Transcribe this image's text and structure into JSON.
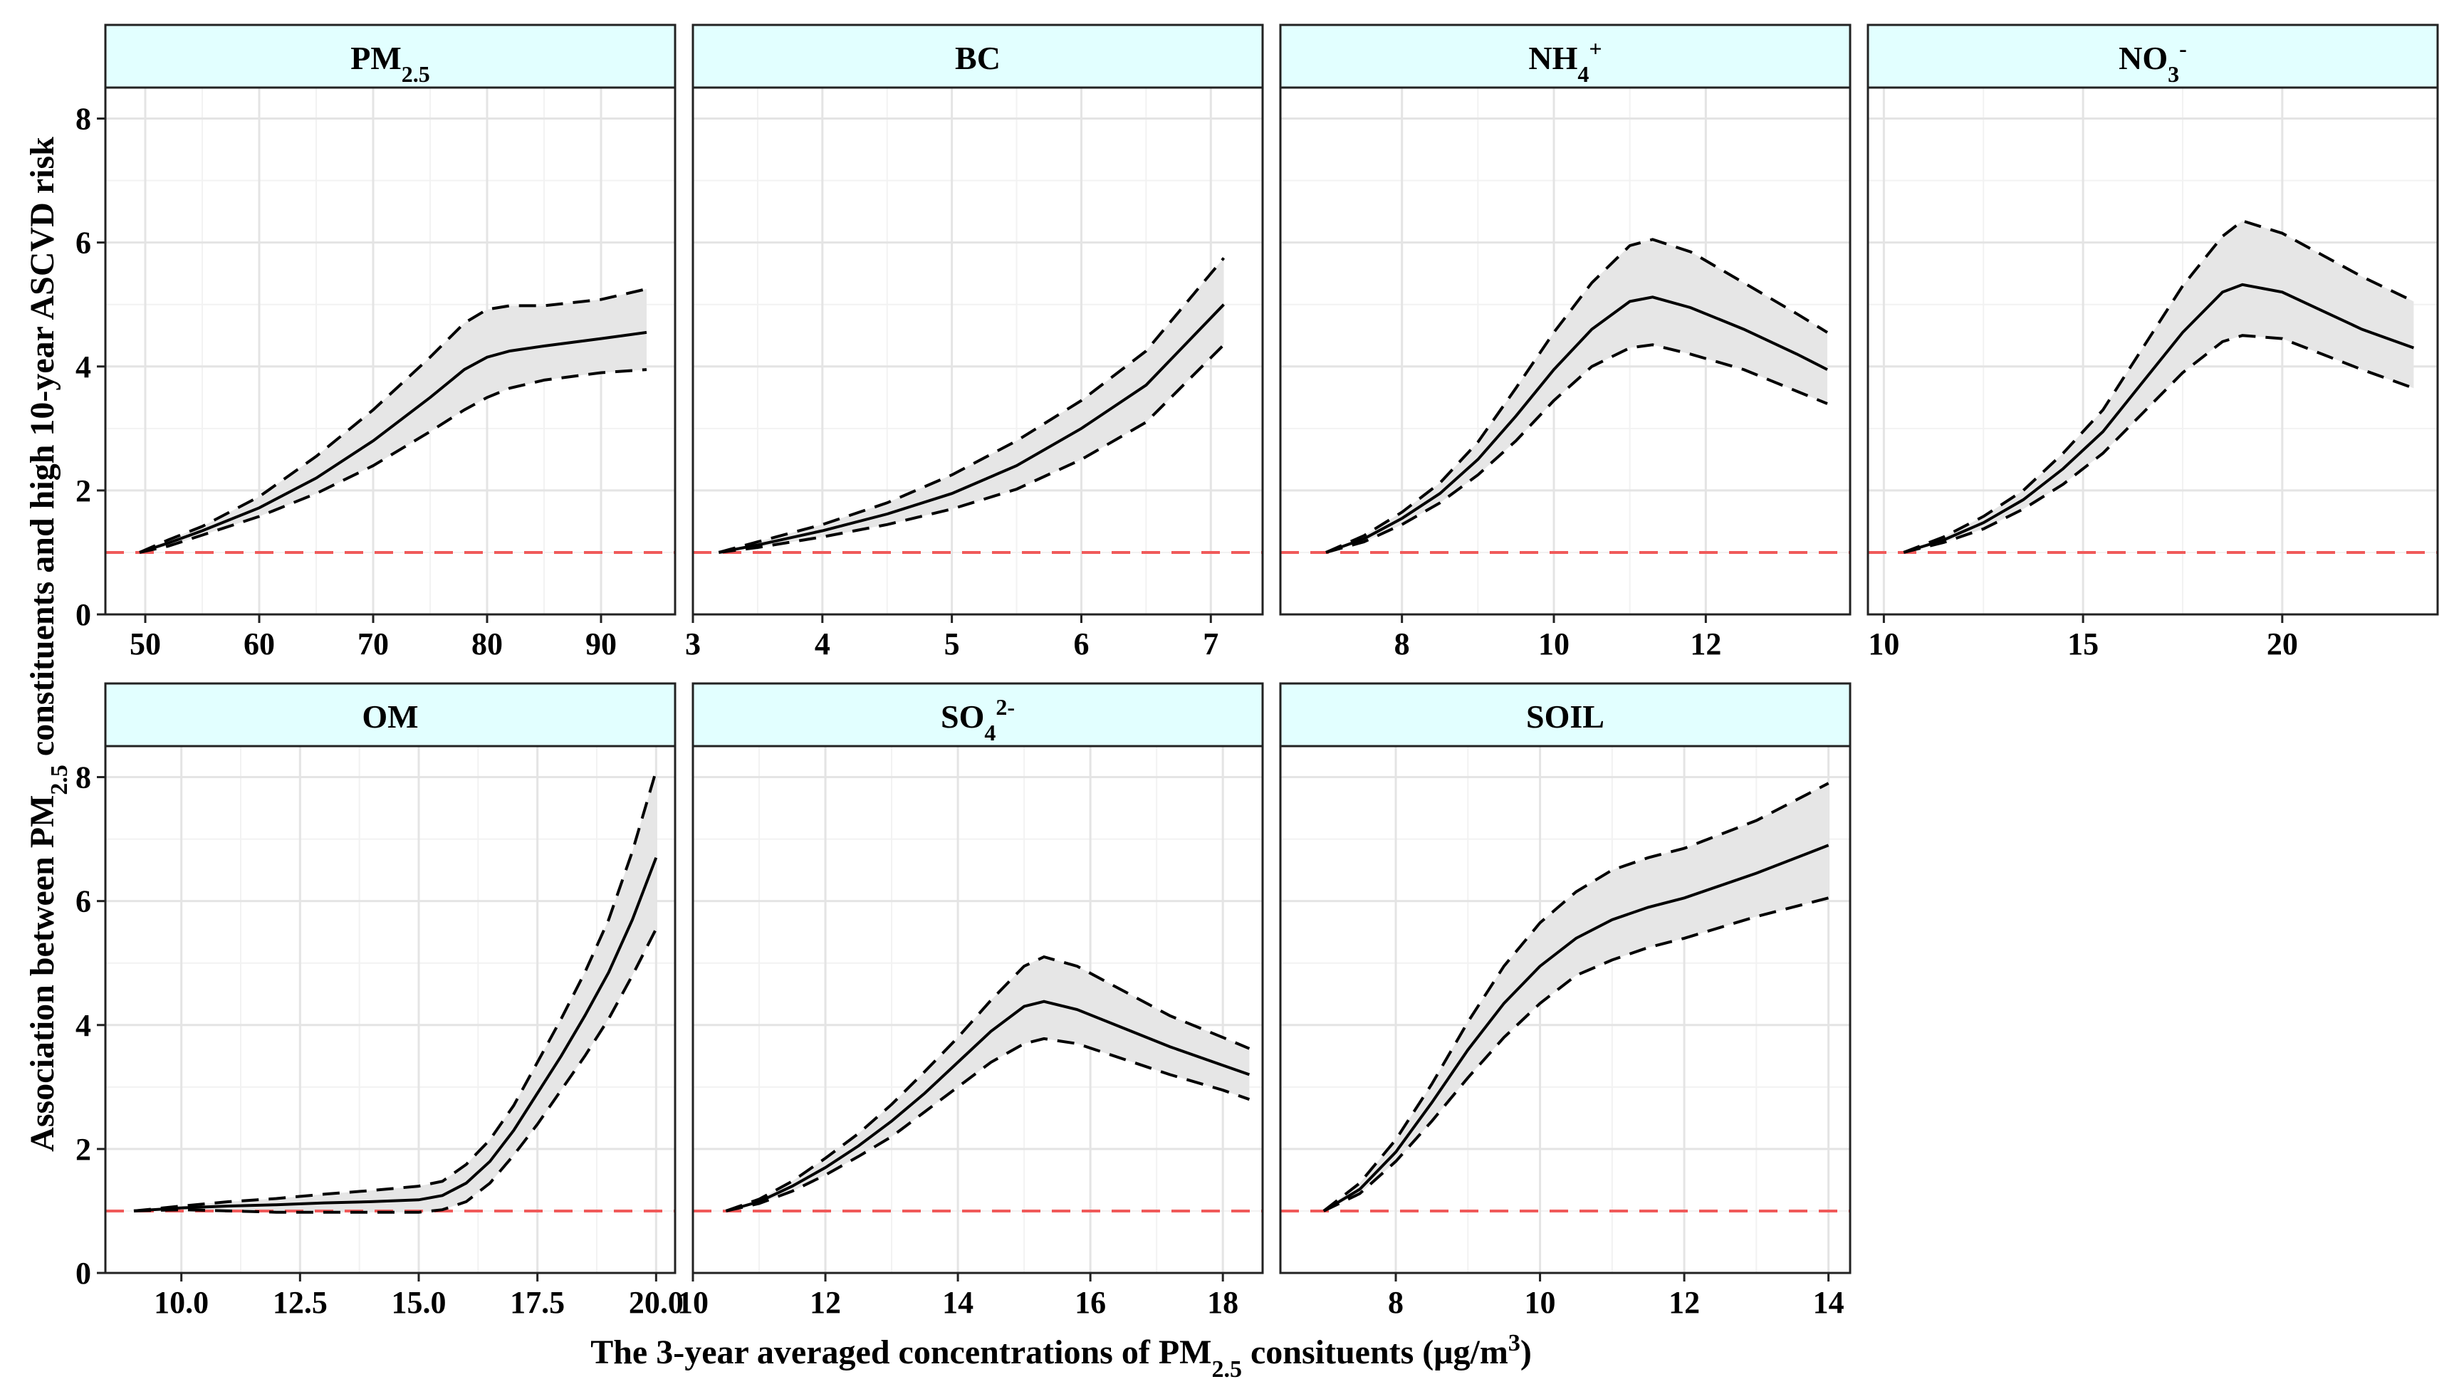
{
  "chart_data": {
    "type": "line",
    "ylabel": "Association between PM2.5 constituents and high 10-year ASCVD risk",
    "ylabel_parts": {
      "pre": "Association between PM",
      "sub": "2.5",
      "post": " constituents and high 10-year ASCVD risk"
    },
    "xlabel": "The 3-year averaged concentrations of PM2.5 consituents (μg/m3)",
    "xlabel_parts": {
      "pre": "The 3-year averaged concentrations of PM",
      "sub": "2.5",
      "mid": " consituents (μg/m",
      "sup": "3",
      "post": ")"
    },
    "ylim": [
      0,
      8.5
    ],
    "yticks": [
      0,
      2,
      4,
      6,
      8
    ],
    "reference_line": {
      "y": 1,
      "color": "#f05a5a",
      "style": "dashed"
    },
    "strip_color": "#e2ffff",
    "ribbon_color": "#e6e6e6",
    "panels": [
      {
        "id": "pm25",
        "title": "PM2.5",
        "title_parts": {
          "base": "PM",
          "sub": "2.5",
          "sup": ""
        },
        "xlim": [
          46.5,
          96.5
        ],
        "xticks": [
          50,
          60,
          70,
          80,
          90
        ],
        "xtick_labels": [
          "50",
          "60",
          "70",
          "80",
          "90"
        ],
        "x": [
          49.5,
          52,
          55,
          60,
          65,
          70,
          75,
          78,
          80,
          82,
          85,
          90,
          94
        ],
        "estimate": [
          1.0,
          1.15,
          1.35,
          1.72,
          2.2,
          2.8,
          3.5,
          3.95,
          4.15,
          4.25,
          4.33,
          4.45,
          4.55
        ],
        "lower": [
          1.0,
          1.1,
          1.28,
          1.58,
          1.95,
          2.4,
          2.95,
          3.3,
          3.5,
          3.65,
          3.78,
          3.9,
          3.95
        ],
        "upper": [
          1.0,
          1.2,
          1.42,
          1.9,
          2.55,
          3.3,
          4.15,
          4.7,
          4.92,
          4.98,
          4.98,
          5.08,
          5.25
        ]
      },
      {
        "id": "bc",
        "title": "BC",
        "title_parts": {
          "base": "BC",
          "sub": "",
          "sup": ""
        },
        "xlim": [
          3.0,
          7.4
        ],
        "xticks": [
          3,
          4,
          5,
          6,
          7
        ],
        "xtick_labels": [
          "3",
          "4",
          "5",
          "6",
          "7"
        ],
        "x": [
          3.2,
          3.5,
          4.0,
          4.5,
          5.0,
          5.5,
          6.0,
          6.5,
          7.1
        ],
        "estimate": [
          1.0,
          1.12,
          1.35,
          1.62,
          1.95,
          2.4,
          3.0,
          3.7,
          5.0
        ],
        "lower": [
          1.0,
          1.08,
          1.25,
          1.45,
          1.7,
          2.02,
          2.5,
          3.1,
          4.35
        ],
        "upper": [
          1.0,
          1.17,
          1.45,
          1.8,
          2.25,
          2.8,
          3.45,
          4.25,
          5.75
        ]
      },
      {
        "id": "nh4",
        "title": "NH4+",
        "title_parts": {
          "base": "NH",
          "sub": "4",
          "sup": "+"
        },
        "xlim": [
          6.4,
          13.9
        ],
        "xticks": [
          8,
          10,
          12
        ],
        "xtick_labels": [
          "8",
          "10",
          "12"
        ],
        "x": [
          7.0,
          7.5,
          8.0,
          8.5,
          9.0,
          9.5,
          10.0,
          10.5,
          11.0,
          11.3,
          11.8,
          12.5,
          13.2,
          13.6
        ],
        "estimate": [
          1.0,
          1.22,
          1.55,
          1.95,
          2.5,
          3.2,
          3.95,
          4.6,
          5.05,
          5.12,
          4.95,
          4.6,
          4.2,
          3.95
        ],
        "lower": [
          1.0,
          1.17,
          1.45,
          1.8,
          2.25,
          2.8,
          3.45,
          4.0,
          4.3,
          4.35,
          4.2,
          3.95,
          3.6,
          3.4
        ],
        "upper": [
          1.0,
          1.27,
          1.65,
          2.12,
          2.78,
          3.65,
          4.55,
          5.35,
          5.95,
          6.05,
          5.85,
          5.35,
          4.85,
          4.55
        ]
      },
      {
        "id": "no3",
        "title": "NO3-",
        "title_parts": {
          "base": "NO",
          "sub": "3",
          "sup": "-"
        },
        "xlim": [
          9.6,
          23.9
        ],
        "xticks": [
          10,
          15,
          20
        ],
        "xtick_labels": [
          "10",
          "15",
          "20"
        ],
        "x": [
          10.5,
          11.5,
          12.5,
          13.5,
          14.5,
          15.5,
          16.5,
          17.5,
          18.5,
          19.0,
          20.0,
          21.0,
          22.0,
          23.3
        ],
        "estimate": [
          1.0,
          1.2,
          1.48,
          1.85,
          2.35,
          2.95,
          3.75,
          4.55,
          5.2,
          5.32,
          5.2,
          4.9,
          4.6,
          4.3
        ],
        "lower": [
          1.0,
          1.16,
          1.38,
          1.7,
          2.1,
          2.6,
          3.25,
          3.9,
          4.4,
          4.5,
          4.45,
          4.2,
          3.95,
          3.65
        ],
        "upper": [
          1.0,
          1.25,
          1.58,
          2.0,
          2.6,
          3.3,
          4.3,
          5.3,
          6.1,
          6.35,
          6.15,
          5.8,
          5.45,
          5.05
        ]
      },
      {
        "id": "om",
        "title": "OM",
        "title_parts": {
          "base": "OM",
          "sub": "",
          "sup": ""
        },
        "xlim": [
          8.4,
          20.4
        ],
        "xticks": [
          10,
          12.5,
          15,
          17.5,
          20
        ],
        "xtick_labels": [
          "10.0",
          "12.5",
          "15.0",
          "17.5",
          "20.0"
        ],
        "x": [
          9.0,
          10.0,
          11.0,
          12.0,
          13.0,
          14.0,
          15.0,
          15.5,
          16.0,
          16.5,
          17.0,
          17.5,
          18.0,
          18.5,
          19.0,
          19.5,
          20.0
        ],
        "estimate": [
          1.0,
          1.05,
          1.08,
          1.1,
          1.13,
          1.15,
          1.18,
          1.25,
          1.45,
          1.8,
          2.3,
          2.9,
          3.5,
          4.15,
          4.85,
          5.7,
          6.7
        ],
        "lower": [
          1.0,
          1.02,
          1.0,
          0.98,
          0.98,
          0.98,
          0.98,
          1.02,
          1.15,
          1.45,
          1.9,
          2.4,
          2.95,
          3.5,
          4.1,
          4.8,
          5.55
        ],
        "upper": [
          1.0,
          1.08,
          1.15,
          1.2,
          1.27,
          1.33,
          1.4,
          1.48,
          1.75,
          2.15,
          2.7,
          3.4,
          4.1,
          4.85,
          5.7,
          6.8,
          8.1
        ]
      },
      {
        "id": "so4",
        "title": "SO42-",
        "title_parts": {
          "base": "SO",
          "sub": "4",
          "sup": "2-"
        },
        "xlim": [
          10.0,
          18.6
        ],
        "xticks": [
          10,
          12,
          14,
          16,
          18
        ],
        "xtick_labels": [
          "10",
          "12",
          "14",
          "16",
          "18"
        ],
        "x": [
          10.5,
          11.0,
          11.5,
          12.0,
          12.5,
          13.0,
          13.5,
          14.0,
          14.5,
          15.0,
          15.3,
          15.8,
          16.5,
          17.2,
          18.0,
          18.4
        ],
        "estimate": [
          1.0,
          1.15,
          1.4,
          1.7,
          2.05,
          2.45,
          2.9,
          3.4,
          3.9,
          4.3,
          4.38,
          4.25,
          3.95,
          3.65,
          3.35,
          3.2
        ],
        "lower": [
          1.0,
          1.12,
          1.32,
          1.58,
          1.88,
          2.2,
          2.6,
          3.0,
          3.4,
          3.7,
          3.78,
          3.7,
          3.45,
          3.2,
          2.95,
          2.8
        ],
        "upper": [
          1.0,
          1.19,
          1.48,
          1.85,
          2.25,
          2.72,
          3.25,
          3.8,
          4.4,
          4.95,
          5.1,
          4.95,
          4.55,
          4.15,
          3.8,
          3.62
        ]
      },
      {
        "id": "soil",
        "title": "SOIL",
        "title_parts": {
          "base": "SOIL",
          "sub": "",
          "sup": ""
        },
        "xlim": [
          6.4,
          14.3
        ],
        "xticks": [
          8,
          10,
          12,
          14
        ],
        "xtick_labels": [
          "8",
          "10",
          "12",
          "14"
        ],
        "x": [
          7.0,
          7.5,
          8.0,
          8.5,
          9.0,
          9.5,
          10.0,
          10.5,
          11.0,
          11.5,
          12.0,
          13.0,
          14.0
        ],
        "estimate": [
          1.0,
          1.35,
          1.95,
          2.75,
          3.6,
          4.35,
          4.95,
          5.4,
          5.7,
          5.9,
          6.05,
          6.45,
          6.9
        ],
        "lower": [
          1.0,
          1.28,
          1.8,
          2.45,
          3.15,
          3.8,
          4.35,
          4.8,
          5.05,
          5.25,
          5.4,
          5.75,
          6.05
        ],
        "upper": [
          1.0,
          1.45,
          2.15,
          3.05,
          4.05,
          4.95,
          5.65,
          6.15,
          6.5,
          6.7,
          6.85,
          7.3,
          7.9
        ]
      }
    ]
  }
}
